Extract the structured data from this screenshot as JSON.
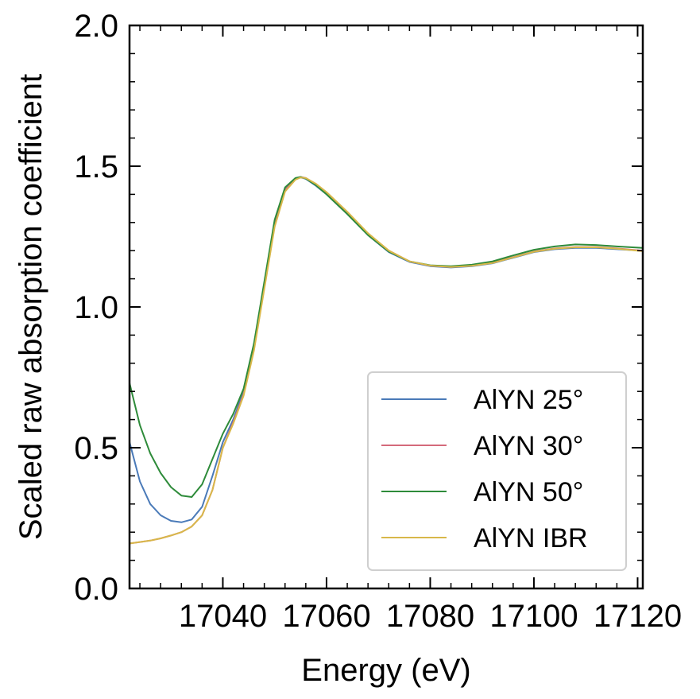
{
  "chart_data": {
    "type": "line",
    "title": "",
    "xlabel": "Energy (eV)",
    "ylabel": "Scaled raw absorption coefficient",
    "xlim": [
      17022,
      17121
    ],
    "ylim": [
      0,
      2.0
    ],
    "x_ticks": [
      17040,
      17060,
      17080,
      17100,
      17120
    ],
    "x_tick_labels": [
      "17040",
      "17060",
      "17080",
      "17100",
      "17120"
    ],
    "y_ticks": [
      0.0,
      0.5,
      1.0,
      1.5,
      2.0
    ],
    "y_tick_labels": [
      "0.0",
      "0.5",
      "1.0",
      "1.5",
      "2.0"
    ],
    "grid": false,
    "legend_position": "bottom-right",
    "series": [
      {
        "name": "AlYN 25°",
        "color": "#4a7ab8",
        "x": [
          17022,
          17024,
          17026,
          17028,
          17030,
          17032,
          17034,
          17036,
          17038,
          17040,
          17042,
          17044,
          17046,
          17048,
          17050,
          17052,
          17054,
          17055,
          17056,
          17058,
          17060,
          17064,
          17068,
          17072,
          17076,
          17080,
          17084,
          17088,
          17092,
          17096,
          17100,
          17104,
          17108,
          17112,
          17116,
          17121
        ],
        "y": [
          0.52,
          0.38,
          0.3,
          0.26,
          0.24,
          0.235,
          0.245,
          0.29,
          0.4,
          0.52,
          0.6,
          0.7,
          0.86,
          1.08,
          1.3,
          1.42,
          1.455,
          1.46,
          1.455,
          1.43,
          1.4,
          1.33,
          1.255,
          1.195,
          1.16,
          1.145,
          1.14,
          1.145,
          1.155,
          1.175,
          1.195,
          1.205,
          1.21,
          1.21,
          1.205,
          1.2
        ]
      },
      {
        "name": "AlYN 30°",
        "color": "#d46a7a",
        "x": [
          17022,
          17024,
          17026,
          17028,
          17030,
          17032,
          17034,
          17036,
          17038,
          17040,
          17042,
          17044,
          17046,
          17048,
          17050,
          17052,
          17054,
          17055,
          17056,
          17058,
          17060,
          17064,
          17068,
          17072,
          17076,
          17080,
          17084,
          17088,
          17092,
          17096,
          17100,
          17104,
          17108,
          17112,
          17116,
          17121
        ],
        "y": [
          0.16,
          0.165,
          0.17,
          0.178,
          0.188,
          0.2,
          0.22,
          0.26,
          0.35,
          0.5,
          0.59,
          0.69,
          0.85,
          1.07,
          1.29,
          1.415,
          1.455,
          1.462,
          1.458,
          1.435,
          1.405,
          1.335,
          1.26,
          1.2,
          1.162,
          1.147,
          1.142,
          1.147,
          1.157,
          1.177,
          1.197,
          1.208,
          1.213,
          1.213,
          1.208,
          1.2
        ]
      },
      {
        "name": "AlYN 50°",
        "color": "#2e8b3a",
        "x": [
          17022,
          17024,
          17026,
          17028,
          17030,
          17032,
          17034,
          17036,
          17038,
          17040,
          17042,
          17044,
          17046,
          17048,
          17050,
          17052,
          17054,
          17055,
          17056,
          17058,
          17060,
          17064,
          17068,
          17072,
          17076,
          17080,
          17084,
          17088,
          17092,
          17096,
          17100,
          17104,
          17108,
          17112,
          17116,
          17121
        ],
        "y": [
          0.73,
          0.58,
          0.48,
          0.41,
          0.36,
          0.33,
          0.325,
          0.37,
          0.46,
          0.55,
          0.62,
          0.71,
          0.87,
          1.09,
          1.31,
          1.425,
          1.458,
          1.462,
          1.456,
          1.432,
          1.4,
          1.33,
          1.255,
          1.197,
          1.162,
          1.148,
          1.145,
          1.15,
          1.162,
          1.183,
          1.203,
          1.215,
          1.222,
          1.22,
          1.215,
          1.21
        ]
      },
      {
        "name": "AlYN IBR",
        "color": "#d8b84a",
        "x": [
          17022,
          17024,
          17026,
          17028,
          17030,
          17032,
          17034,
          17036,
          17038,
          17040,
          17042,
          17044,
          17046,
          17048,
          17050,
          17052,
          17054,
          17055,
          17056,
          17058,
          17060,
          17064,
          17068,
          17072,
          17076,
          17080,
          17084,
          17088,
          17092,
          17096,
          17100,
          17104,
          17108,
          17112,
          17116,
          17121
        ],
        "y": [
          0.16,
          0.165,
          0.17,
          0.178,
          0.188,
          0.2,
          0.22,
          0.26,
          0.35,
          0.5,
          0.585,
          0.685,
          0.845,
          1.065,
          1.285,
          1.41,
          1.452,
          1.46,
          1.458,
          1.437,
          1.408,
          1.338,
          1.262,
          1.2,
          1.162,
          1.147,
          1.142,
          1.146,
          1.156,
          1.176,
          1.196,
          1.207,
          1.212,
          1.212,
          1.207,
          1.198
        ]
      }
    ]
  }
}
